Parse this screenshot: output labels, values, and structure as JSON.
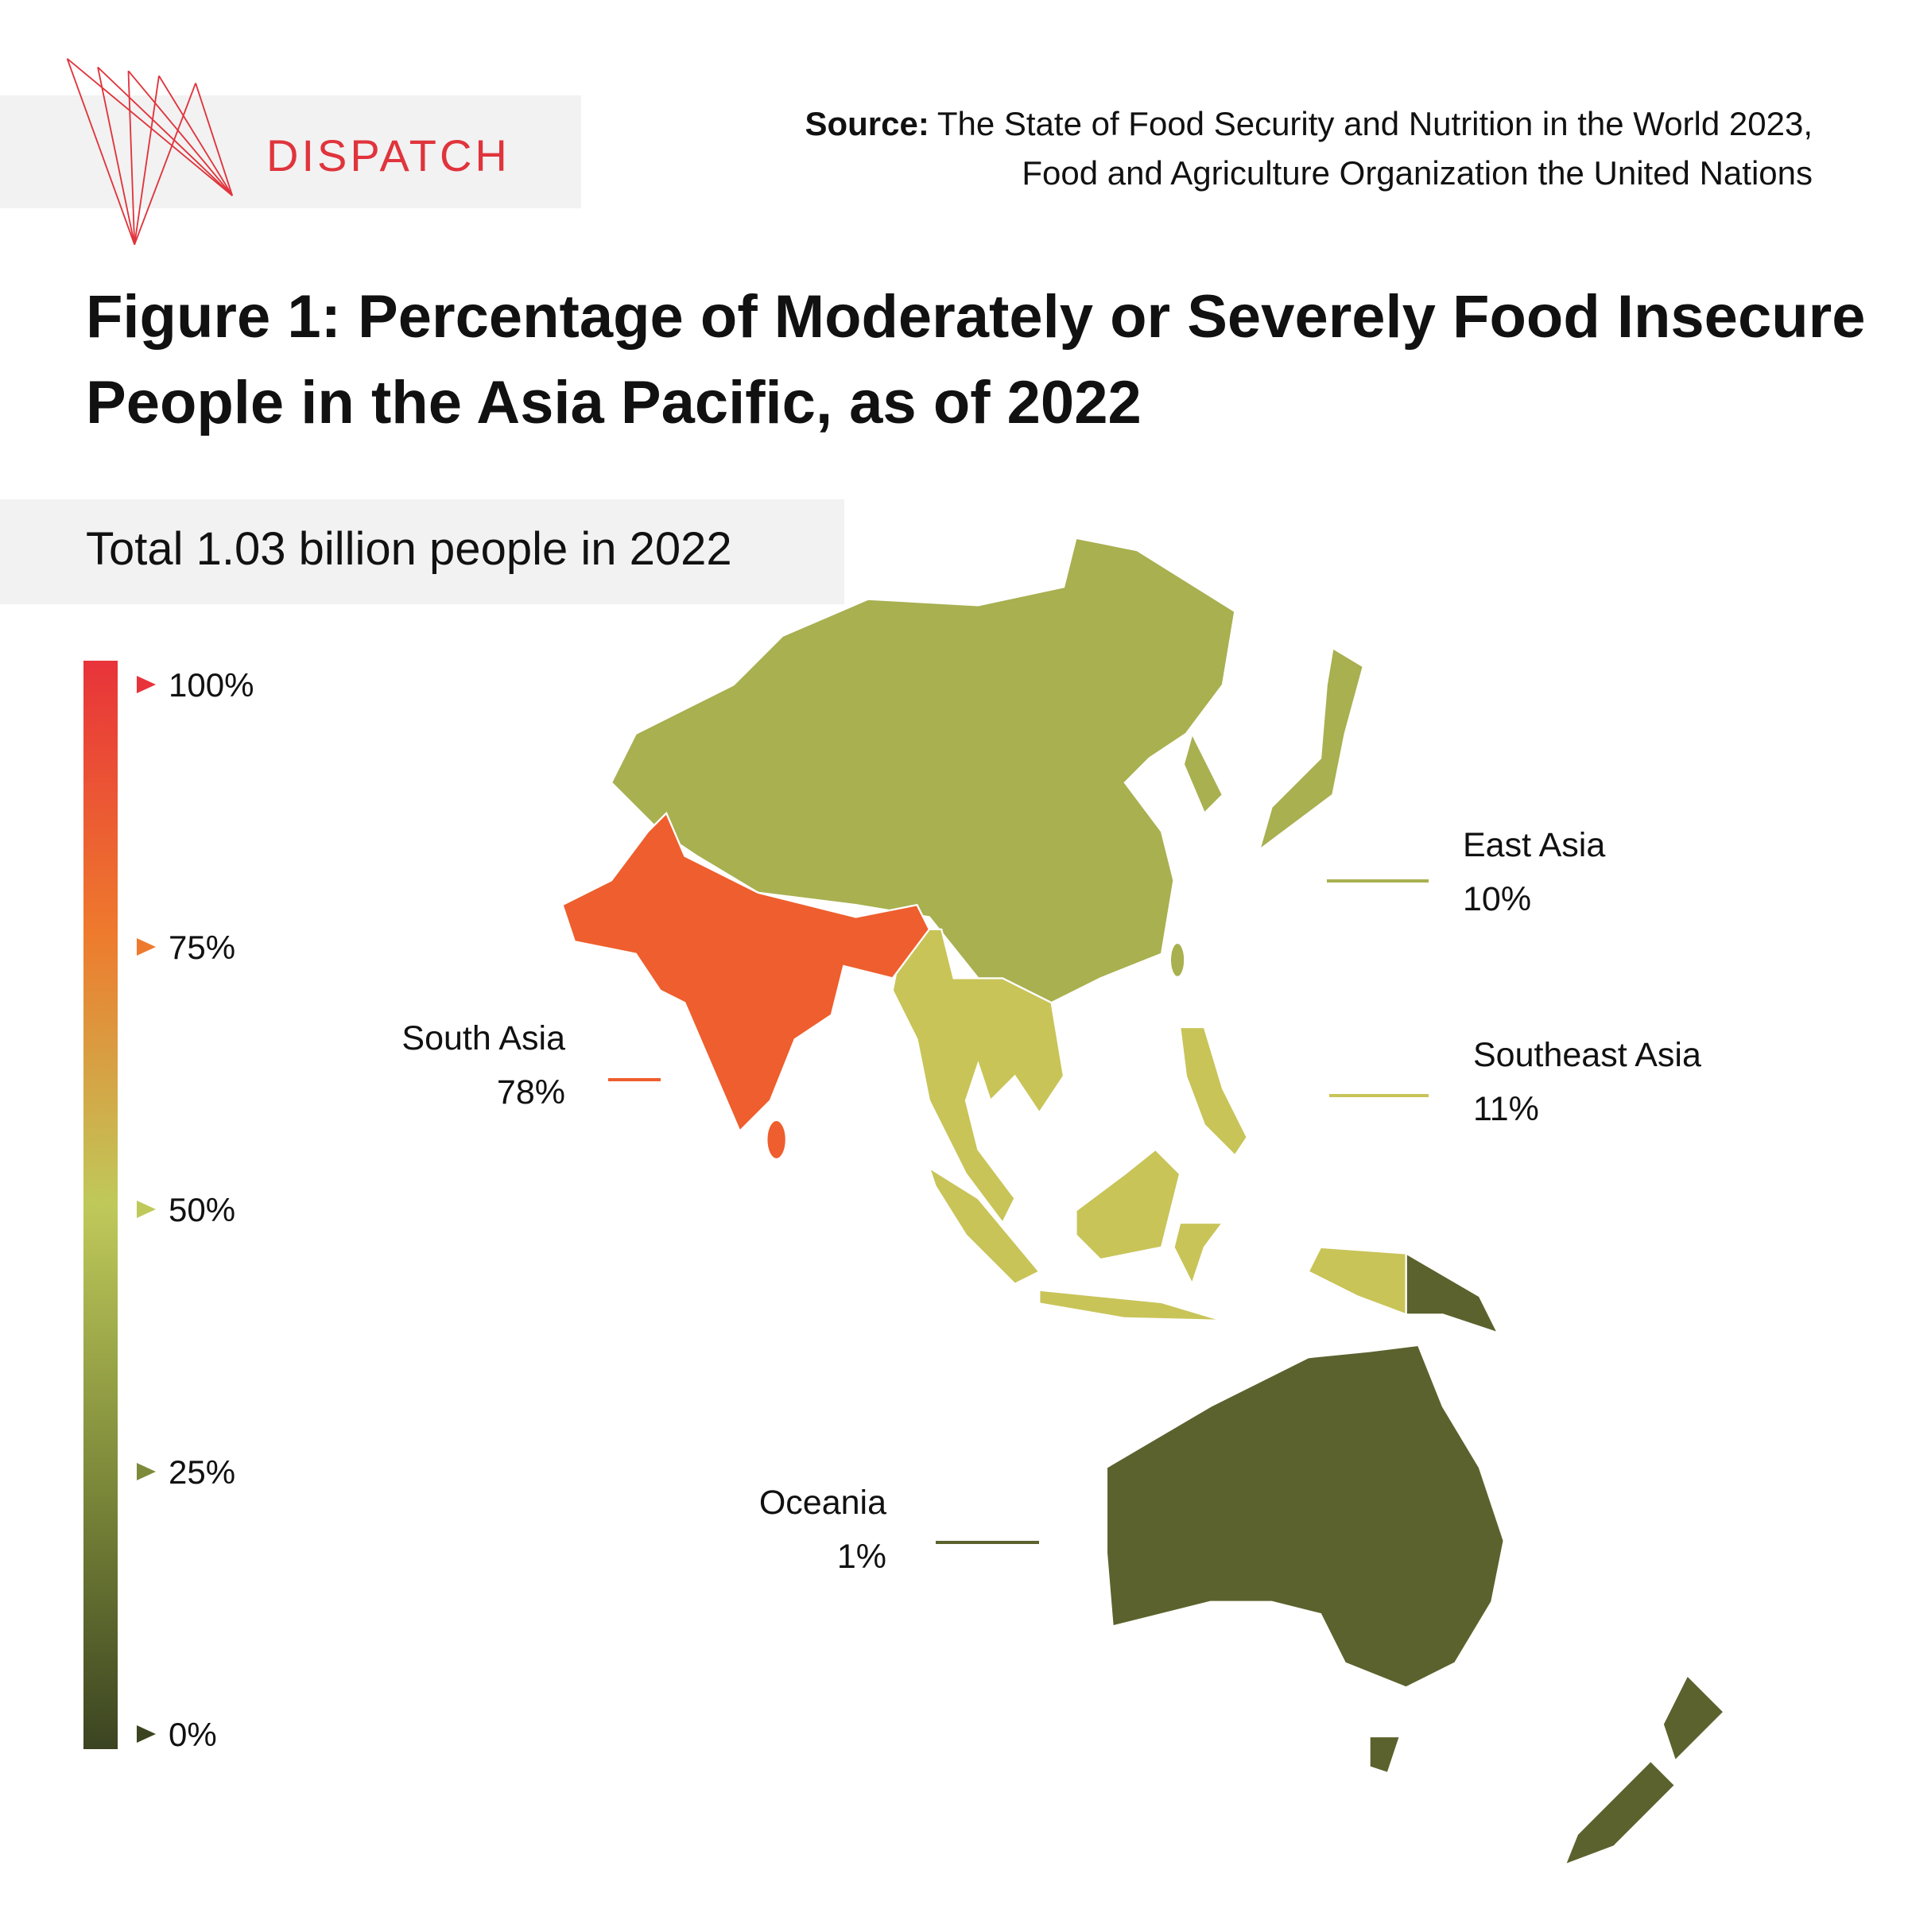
{
  "chart_data": {
    "type": "map",
    "logo": "DISPATCH",
    "source_label": "Source:",
    "source_lines": [
      "The State of Food Security and Nutrition in the World 2023,",
      "Food and Agriculture Organization the United Nations"
    ],
    "title": "Figure 1: Percentage of Moderately or Severely Food Insecure People in the Asia Pacific, as of 2022",
    "subtitle": "Total 1.03 billion people in 2022",
    "regions": [
      {
        "name": "East Asia",
        "value": 10,
        "value_label": "10%",
        "color": "#a8b050"
      },
      {
        "name": "Southeast Asia",
        "value": 11,
        "value_label": "11%",
        "color": "#c8c458"
      },
      {
        "name": "South Asia",
        "value": 78,
        "value_label": "78%",
        "color": "#ef5e2e"
      },
      {
        "name": "Oceania",
        "value": 1,
        "value_label": "1%",
        "color": "#5c622d"
      }
    ],
    "colorscale": [
      "#3b4421",
      "#7e8a3a",
      "#bfc95a",
      "#ee7a2d",
      "#e8333a"
    ],
    "clim": [
      0,
      100
    ],
    "cticks": [
      {
        "value": 0,
        "label": "0%"
      },
      {
        "value": 25,
        "label": "25%"
      },
      {
        "value": 50,
        "label": "50%"
      },
      {
        "value": 75,
        "label": "75%"
      },
      {
        "value": 100,
        "label": "100%"
      }
    ]
  }
}
